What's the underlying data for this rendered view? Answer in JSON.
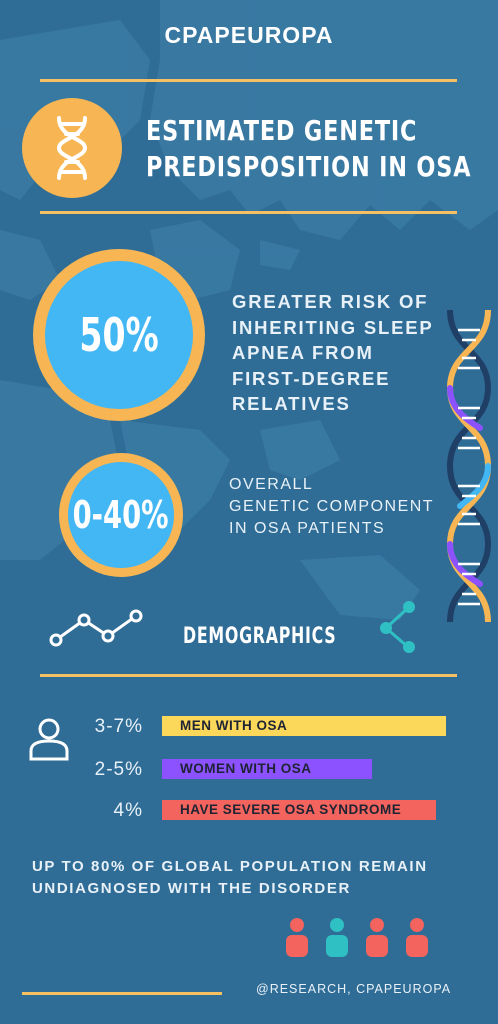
{
  "header": {
    "brand": "CPAPEUROPA"
  },
  "title": {
    "line1": "ESTIMATED GENETIC",
    "line2": "PREDISPOSITION IN OSA",
    "icon": "dna-icon"
  },
  "stats": [
    {
      "value": "50%",
      "lines": [
        "GREATER RISK OF",
        "INHERITING SLEEP",
        "APNEA FROM",
        "FIRST-DEGREE",
        "RELATIVES"
      ]
    },
    {
      "value": "0-40%",
      "lines": [
        "OVERALL",
        "GENETIC COMPONENT",
        "IN OSA PATIENTS"
      ]
    }
  ],
  "demographics": {
    "heading": "DEMOGRAPHICS",
    "rows": [
      {
        "percent": "3-7%",
        "label": "MEN WITH OSA",
        "color": "#fbd75a"
      },
      {
        "percent": "2-5%",
        "label": "WOMEN WITH OSA",
        "color": "#8c52ff"
      },
      {
        "percent": "4%",
        "label": "HAVE SEVERE OSA SYNDROME",
        "color": "#f2645d"
      }
    ]
  },
  "footnote": {
    "line1": "UP TO 80% OF GLOBAL POPULATION REMAIN",
    "line2": "UNDIAGNOSED WITH THE DISORDER"
  },
  "credit": "@RESEARCH, CPAPEUROPA",
  "colors": {
    "background": "#306d96",
    "accent": "#f7b653",
    "circle": "#43b6f4",
    "teal": "#2fc0c4",
    "coral": "#f2645d"
  }
}
